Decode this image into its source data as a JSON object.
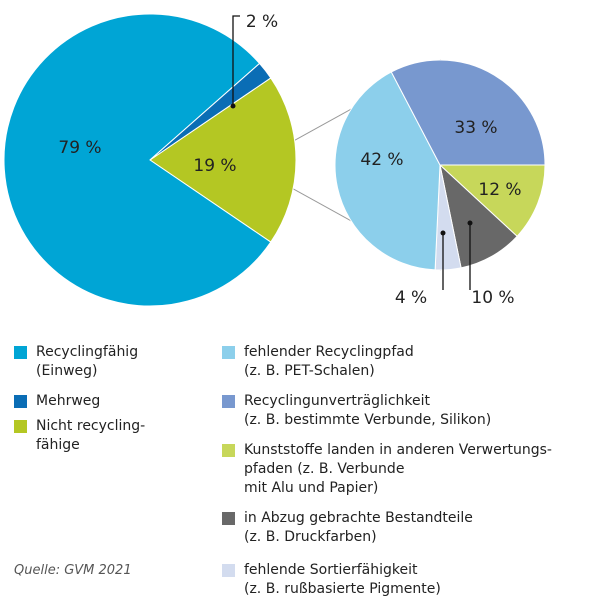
{
  "chart_data": [
    {
      "type": "pie",
      "categories": [
        "Recyclingfähig\n(Einweg)",
        "Mehrweg",
        "Nicht recycling-\nfähige"
      ],
      "values": [
        79,
        2,
        19
      ],
      "value_labels": [
        "79 %",
        "2 %",
        "19 %"
      ],
      "colors": [
        "#00a5d5",
        "#0a6db5",
        "#b4c723"
      ]
    },
    {
      "type": "pie",
      "categories": [
        "fehlender Recyclingpfad\n(z. B. PET-Schalen)",
        "Recyclingunverträglichkeit\n(z. B. bestimmte Verbunde, Silikon)",
        "Kunststoffe landen in anderen Verwertungs-\npfaden (z. B. Verbunde\nmit Alu und Papier)",
        "in Abzug gebrachte Bestandteile\n(z. B. Druckfarben)",
        "fehlende Sortierfähigkeit\n(z. B. rußbasierte Pigmente)"
      ],
      "values": [
        42,
        33,
        12,
        10,
        4
      ],
      "value_labels": [
        "42 %",
        "33 %",
        "12 %",
        "10 %",
        "4 %"
      ],
      "colors": [
        "#8ccfeb",
        "#7898cf",
        "#c7d75a",
        "#686868",
        "#d3dcef"
      ]
    }
  ],
  "source": "Quelle: GVM 2021"
}
